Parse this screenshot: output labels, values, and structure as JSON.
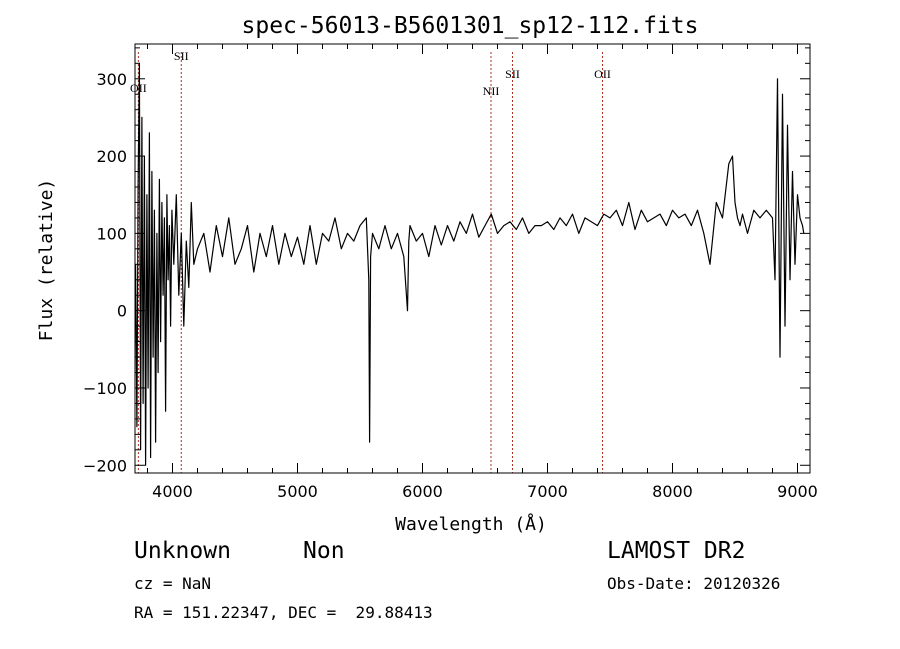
{
  "chart_data": {
    "type": "line",
    "title": "spec-56013-B5601301_sp12-112.fits",
    "xlabel": "Wavelength (Å)",
    "ylabel": "Flux (relative)",
    "xlim": [
      3700,
      9100
    ],
    "ylim": [
      -210,
      345
    ],
    "x_ticks": [
      4000,
      5000,
      6000,
      7000,
      8000,
      9000
    ],
    "y_ticks": [
      -200,
      -100,
      0,
      100,
      200,
      300
    ],
    "grid": false,
    "line_color": "#000000",
    "marker_color": "#b03020",
    "lines": [
      {
        "label": "OII",
        "x": 3727
      },
      {
        "label": "SII",
        "x": 4070
      },
      {
        "label": "NII",
        "x": 6548
      },
      {
        "label": "SII",
        "x": 6720
      },
      {
        "label": "OII",
        "x": 7440
      }
    ],
    "series": [
      {
        "x": [
          3705,
          3715,
          3725,
          3735,
          3745,
          3755,
          3765,
          3775,
          3785,
          3795,
          3805,
          3815,
          3825,
          3835,
          3845,
          3855,
          3865,
          3875,
          3885,
          3895,
          3905,
          3915,
          3925,
          3935,
          3945,
          3955,
          3965,
          3975,
          3985,
          3995,
          4010,
          4030,
          4050,
          4070,
          4090,
          4110,
          4130,
          4150,
          4170,
          4200,
          4250,
          4300,
          4350,
          4400,
          4450,
          4500,
          4550,
          4600,
          4650,
          4700,
          4750,
          4800,
          4850,
          4900,
          4950,
          5000,
          5050,
          5100,
          5150,
          5200,
          5250,
          5300,
          5350,
          5400,
          5450,
          5500,
          5550,
          5570,
          5577,
          5585,
          5600,
          5650,
          5700,
          5750,
          5800,
          5850,
          5880,
          5890,
          5900,
          5950,
          6000,
          6050,
          6100,
          6150,
          6200,
          6250,
          6300,
          6350,
          6400,
          6450,
          6500,
          6550,
          6600,
          6650,
          6700,
          6750,
          6800,
          6850,
          6900,
          6950,
          7000,
          7050,
          7100,
          7150,
          7200,
          7250,
          7300,
          7350,
          7400,
          7450,
          7500,
          7550,
          7600,
          7650,
          7700,
          7750,
          7800,
          7850,
          7900,
          7950,
          8000,
          8050,
          8100,
          8150,
          8200,
          8250,
          8300,
          8350,
          8400,
          8450,
          8480,
          8500,
          8520,
          8540,
          8560,
          8600,
          8650,
          8700,
          8750,
          8800,
          8820,
          8840,
          8860,
          8880,
          8900,
          8920,
          8940,
          8960,
          8980,
          9000,
          9020,
          9040,
          9050
        ],
        "y": [
          60,
          -150,
          160,
          320,
          -180,
          250,
          -120,
          200,
          -200,
          150,
          -100,
          230,
          -190,
          180,
          -60,
          130,
          -170,
          100,
          -80,
          170,
          -40,
          140,
          20,
          120,
          -130,
          150,
          40,
          110,
          -20,
          130,
          60,
          150,
          20,
          100,
          -20,
          90,
          30,
          140,
          60,
          80,
          100,
          50,
          110,
          70,
          120,
          60,
          80,
          110,
          50,
          100,
          70,
          110,
          60,
          100,
          70,
          95,
          60,
          110,
          60,
          100,
          90,
          120,
          80,
          100,
          90,
          110,
          120,
          40,
          -170,
          70,
          100,
          80,
          110,
          80,
          100,
          70,
          0,
          90,
          110,
          90,
          100,
          70,
          110,
          85,
          110,
          90,
          115,
          100,
          125,
          95,
          110,
          125,
          100,
          110,
          115,
          105,
          120,
          100,
          110,
          110,
          115,
          105,
          120,
          110,
          125,
          100,
          120,
          115,
          110,
          125,
          120,
          130,
          110,
          140,
          105,
          130,
          115,
          120,
          125,
          110,
          130,
          120,
          125,
          110,
          130,
          100,
          60,
          140,
          120,
          190,
          200,
          140,
          120,
          110,
          125,
          100,
          130,
          120,
          130,
          120,
          40,
          300,
          -60,
          280,
          -20,
          240,
          40,
          180,
          60,
          150,
          120,
          110,
          100
        ]
      }
    ]
  },
  "footer": {
    "class_label": "Unknown",
    "subclass_label": "Non",
    "cz": "cz = NaN",
    "coords": "RA = 151.22347, DEC =  29.88413",
    "survey": "LAMOST DR2",
    "obs_date": "Obs-Date: 20120326"
  }
}
